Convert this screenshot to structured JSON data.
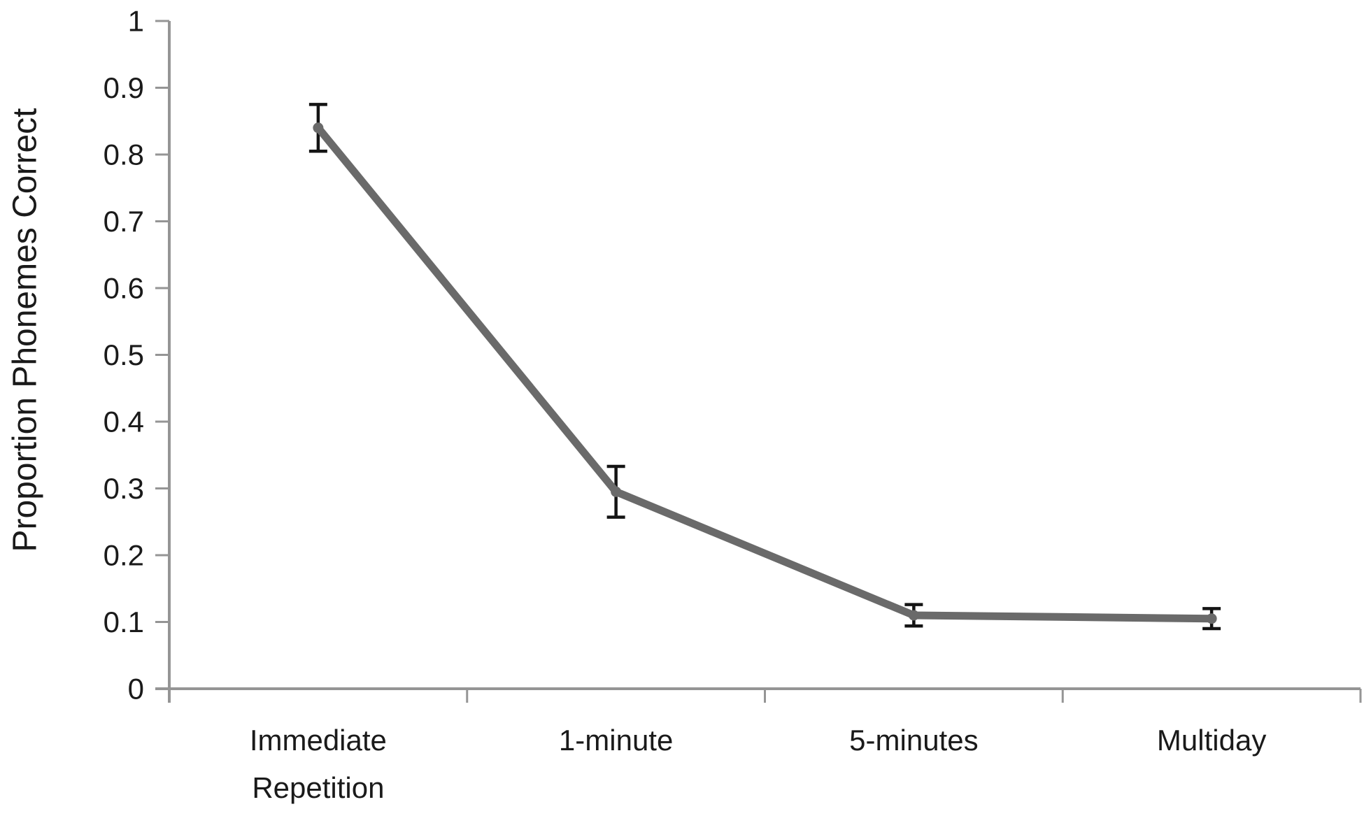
{
  "chart_data": {
    "type": "line",
    "title": "",
    "xlabel": "",
    "ylabel": "Proportion Phonemes Correct",
    "categories": [
      "Immediate Repetition",
      "1-minute",
      "5-minutes",
      "Multiday"
    ],
    "category_display_lines": [
      [
        "Immediate",
        "Repetition"
      ],
      [
        "1-minute"
      ],
      [
        "5-minutes"
      ],
      [
        "Multiday"
      ]
    ],
    "series": [
      {
        "name": "Proportion Phonemes Correct",
        "values": [
          0.84,
          0.295,
          0.11,
          0.105
        ],
        "errors": [
          0.035,
          0.038,
          0.016,
          0.015
        ]
      }
    ],
    "ylim": [
      0,
      1
    ],
    "ytick_step": 0.1,
    "ytick_labels": [
      "0",
      "0.1",
      "0.2",
      "0.3",
      "0.4",
      "0.5",
      "0.6",
      "0.7",
      "0.8",
      "0.9",
      "1"
    ],
    "grid": false,
    "legend_position": "none",
    "colors": {
      "line": "#6a6a6a",
      "marker": "#6a6a6a",
      "error_bar": "#141414",
      "axis": "#959595",
      "text": "#1a1a1a",
      "background": "#ffffff"
    }
  }
}
